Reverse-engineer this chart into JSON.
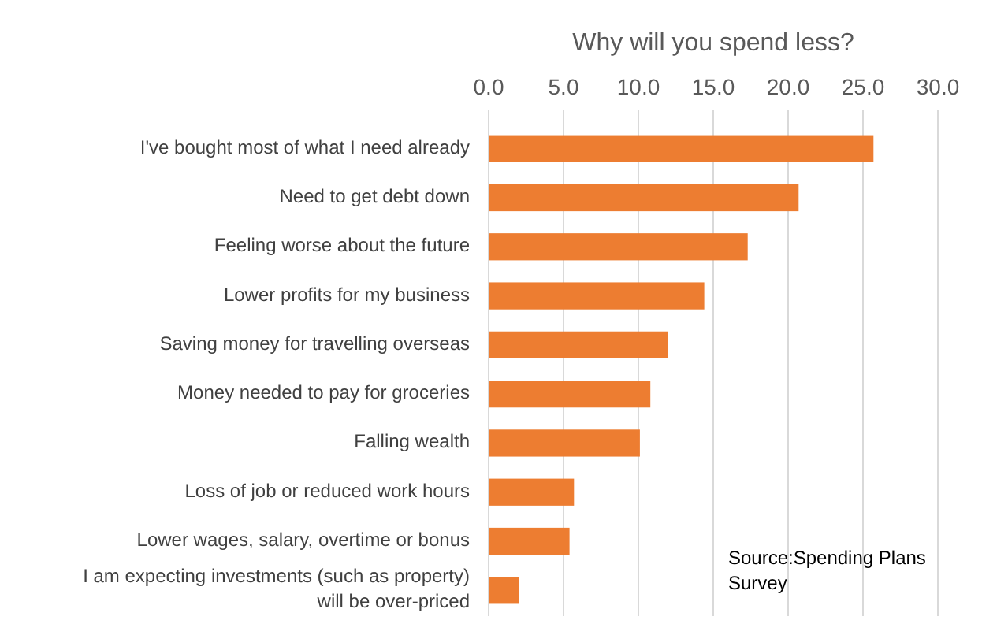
{
  "chart_data": {
    "type": "bar",
    "orientation": "horizontal",
    "title": "Why will you spend less?",
    "categories": [
      "I've bought most of what I need already",
      "Need to get debt down",
      "Feeling worse about the future",
      "Lower profits for my business",
      "Saving money for travelling overseas",
      "Money needed to pay for groceries",
      "Falling wealth",
      "Loss of job or reduced work hours",
      "Lower wages, salary, overtime or bonus",
      "I am expecting investments (such as property) will be over-priced"
    ],
    "values": [
      25.7,
      20.7,
      17.3,
      14.4,
      12.0,
      10.8,
      10.1,
      5.7,
      5.4,
      2.0
    ],
    "color": "#ed7d31",
    "xlim": [
      0,
      30
    ],
    "xticks": [
      {
        "value": 0,
        "label": "0.0"
      },
      {
        "value": 5,
        "label": "5.0"
      },
      {
        "value": 10,
        "label": "10.0"
      },
      {
        "value": 15,
        "label": "15.0"
      },
      {
        "value": 20,
        "label": "20.0"
      },
      {
        "value": 25,
        "label": "25.0"
      },
      {
        "value": 30,
        "label": "30.0"
      }
    ],
    "grid": "x",
    "annotations": [
      "Source:Spending Plans Survey"
    ]
  }
}
